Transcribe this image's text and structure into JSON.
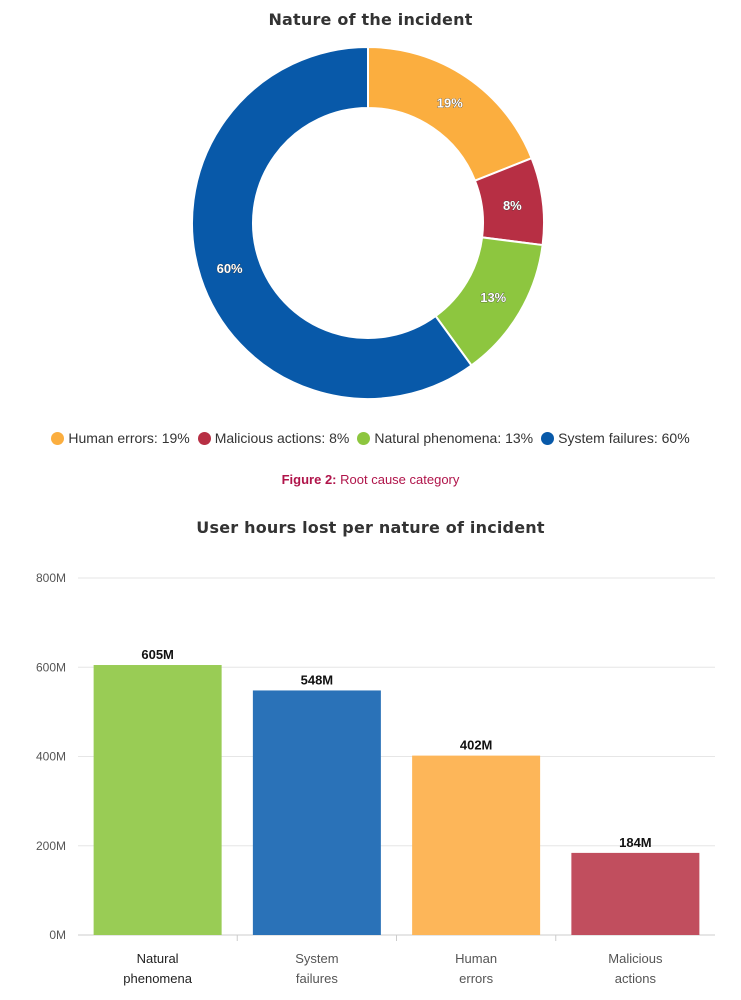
{
  "caption": {
    "label": "Figure 2:",
    "text": "Root cause category"
  },
  "chart_data": [
    {
      "type": "pie",
      "title": "Nature of the incident",
      "donut": true,
      "legend": "bottom",
      "slices": [
        {
          "name": "Human errors",
          "value": 19,
          "label": "19%",
          "legend_label": "Human errors: 19%",
          "color": "#fbae3f"
        },
        {
          "name": "Malicious actions",
          "value": 8,
          "label": "8%",
          "legend_label": "Malicious actions: 8%",
          "color": "#b72f44"
        },
        {
          "name": "Natural phenomena",
          "value": 13,
          "label": "13%",
          "legend_label": "Natural phenomena: 13%",
          "color": "#8dc63f"
        },
        {
          "name": "System failures",
          "value": 60,
          "label": "60%",
          "legend_label": "System failures: 60%",
          "color": "#0859a9"
        }
      ]
    },
    {
      "type": "bar",
      "title": "User hours lost per nature of incident",
      "categories": [
        [
          "Natural",
          "phenomena"
        ],
        [
          "System",
          "failures"
        ],
        [
          "Human",
          "errors"
        ],
        [
          "Malicious",
          "actions"
        ]
      ],
      "values": [
        605,
        548,
        402,
        184
      ],
      "value_labels": [
        "605M",
        "548M",
        "402M",
        "184M"
      ],
      "colors": [
        "#99cc55",
        "#2a72b8",
        "#fdb659",
        "#c14e5e"
      ],
      "yticks": [
        "0M",
        "200M",
        "400M",
        "600M",
        "800M"
      ],
      "ytick_values": [
        0,
        200,
        400,
        600,
        800
      ],
      "ylim": [
        0,
        800
      ],
      "grid": true
    }
  ]
}
